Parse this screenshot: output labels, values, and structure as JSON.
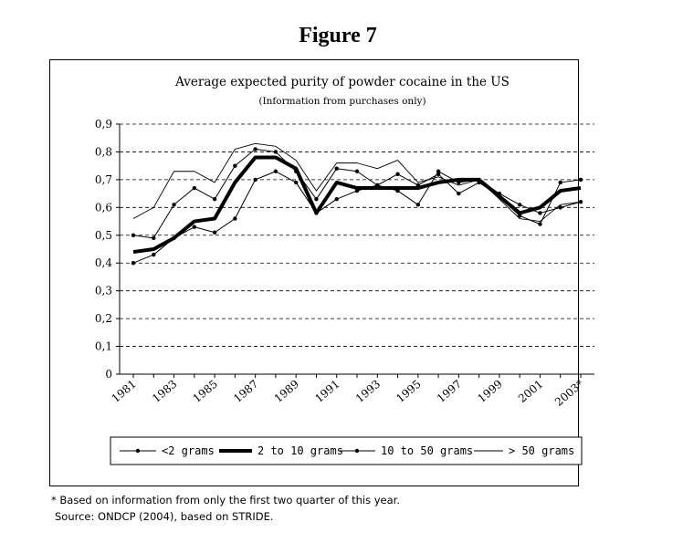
{
  "figure_label": "Figure 7",
  "footnote": "* Based on information from only the first two quarter of this year.",
  "source": "Source: ONDCP (2004), based on STRIDE.",
  "colors": {
    "line": "#000000",
    "grid": "#000000",
    "background": "#ffffff"
  },
  "chart_data": {
    "type": "line",
    "title": "Average expected purity of powder cocaine in the US",
    "subtitle": "(Information from purchases only)",
    "xlabel": "",
    "ylabel": "",
    "ylim": [
      0,
      0.9
    ],
    "yticks": [
      "0",
      "0,1",
      "0,2",
      "0,3",
      "0,4",
      "0,5",
      "0,6",
      "0,7",
      "0,8",
      "0,9"
    ],
    "grid": "horizontal dashed",
    "legend_position": "bottom",
    "x": [
      1981,
      1982,
      1983,
      1984,
      1985,
      1986,
      1987,
      1988,
      1989,
      1990,
      1991,
      1992,
      1993,
      1994,
      1995,
      1996,
      1997,
      1998,
      1999,
      2000,
      2001,
      2002,
      2003
    ],
    "x_tick_labels": [
      "1981",
      "1983",
      "1985",
      "1987",
      "1989",
      "1991",
      "1993",
      "1995",
      "1997",
      "1999",
      "2001",
      "2003*"
    ],
    "series": [
      {
        "name": "<2 grams",
        "style": "thin-dots",
        "values": [
          0.4,
          0.43,
          0.49,
          0.53,
          0.51,
          0.56,
          0.7,
          0.73,
          0.69,
          0.58,
          0.63,
          0.66,
          0.68,
          0.66,
          0.61,
          0.73,
          0.69,
          0.7,
          0.65,
          0.61,
          0.58,
          0.6,
          0.62
        ]
      },
      {
        "name": "2 to 10 grams",
        "style": "thick",
        "values": [
          0.44,
          0.45,
          0.49,
          0.55,
          0.56,
          0.69,
          0.78,
          0.78,
          0.74,
          0.58,
          0.69,
          0.67,
          0.67,
          0.67,
          0.67,
          0.69,
          0.7,
          0.7,
          0.64,
          0.58,
          0.6,
          0.66,
          0.67
        ]
      },
      {
        "name": "10 to 50 grams",
        "style": "thin-dots",
        "values": [
          0.5,
          0.49,
          0.61,
          0.67,
          0.63,
          0.75,
          0.81,
          0.8,
          0.73,
          0.63,
          0.74,
          0.73,
          0.68,
          0.72,
          0.68,
          0.72,
          0.65,
          0.69,
          0.64,
          0.57,
          0.54,
          0.69,
          0.7
        ]
      },
      {
        "name": "> 50 grams",
        "style": "thin",
        "values": [
          0.56,
          0.6,
          0.73,
          0.73,
          0.69,
          0.81,
          0.83,
          0.82,
          0.77,
          0.66,
          0.76,
          0.76,
          0.74,
          0.77,
          0.69,
          0.71,
          0.68,
          0.7,
          0.63,
          0.56,
          0.55,
          0.61,
          0.62
        ]
      }
    ]
  }
}
